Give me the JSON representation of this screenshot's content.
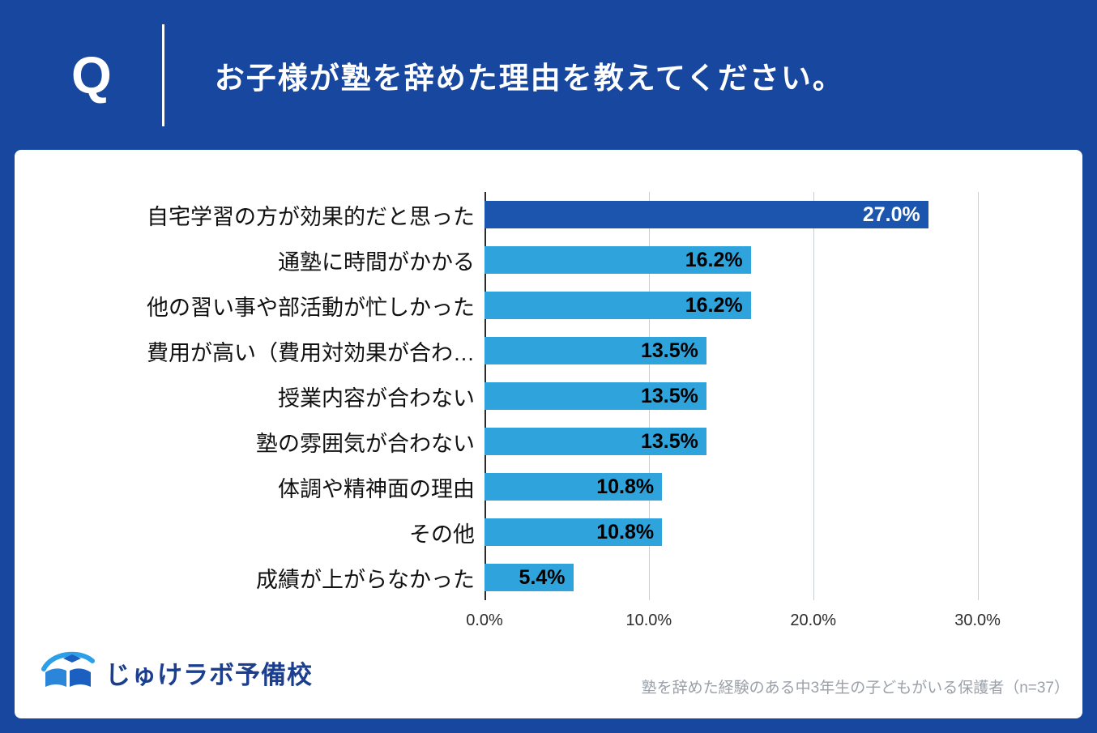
{
  "header": {
    "q_label": "Q",
    "title": "お子様が塾を辞めた理由を教えてください。"
  },
  "chart_data": {
    "type": "bar",
    "orientation": "horizontal",
    "title": "",
    "xlabel": "",
    "ylabel": "",
    "categories": [
      "自宅学習の方が効果的だと思った",
      "通塾に時間がかかる",
      "他の習い事や部活動が忙しかった",
      "費用が高い（費用対効果が合わ…",
      "授業内容が合わない",
      "塾の雰囲気が合わない",
      "体調や精神面の理由",
      "その他",
      "成績が上がらなかった"
    ],
    "values": [
      27.0,
      16.2,
      16.2,
      13.5,
      13.5,
      13.5,
      10.8,
      10.8,
      5.4
    ],
    "value_labels": [
      "27.0%",
      "16.2%",
      "16.2%",
      "13.5%",
      "13.5%",
      "13.5%",
      "10.8%",
      "10.8%",
      "5.4%"
    ],
    "highlight_index": 0,
    "x_ticks": [
      {
        "value": 0,
        "label": "0.0%"
      },
      {
        "value": 10,
        "label": "10.0%"
      },
      {
        "value": 20,
        "label": "20.0%"
      },
      {
        "value": 30,
        "label": "30.0%"
      }
    ],
    "xlim": [
      0,
      35
    ],
    "grid": true,
    "legend": false,
    "colors": {
      "highlight_bar": "#1c55ae",
      "default_bar": "#2fa3dc",
      "highlight_value_text": "#ffffff",
      "value_text": "#000000",
      "gridline": "#c9ced4",
      "zero_line": "#2b2b2b"
    }
  },
  "footer": {
    "logo_text": "じゅけラボ予備校",
    "note": "塾を辞めた経験のある中3年生の子どもがいる保護者（n=37）"
  },
  "colors": {
    "page_background": "#17479e",
    "card_background": "#ffffff",
    "header_text": "#ffffff",
    "logo_text": "#1c3e8e",
    "note_text": "#9ba1a8"
  }
}
